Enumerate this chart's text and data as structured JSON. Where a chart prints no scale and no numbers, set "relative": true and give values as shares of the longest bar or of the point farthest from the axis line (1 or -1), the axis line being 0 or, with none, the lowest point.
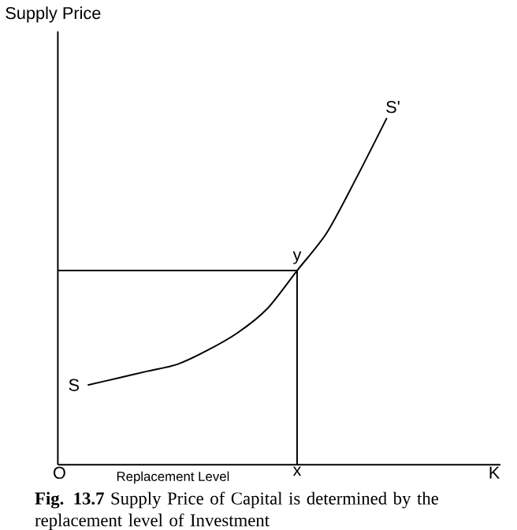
{
  "chart_data": {
    "type": "line",
    "xlabel": "Replacement Level",
    "categories": [
      null,
      null,
      null,
      null,
      null,
      null,
      null,
      null,
      null,
      null,
      null,
      null,
      null,
      null,
      null
    ],
    "relative": true,
    "series": [
      {
        "color": "#000000",
        "values": [
          null,
          0.23,
          0.25,
          0.27,
          0.29,
          0.33,
          0.38,
          0.45,
          0.56,
          0.67,
          0.83,
          1.0,
          null,
          null,
          null
        ]
      }
    ],
    "ref_lines": [
      {
        "axis": "y",
        "value": 0.56,
        "label": "y"
      }
    ],
    "annotations": [
      "O",
      "K",
      "S",
      "S'",
      "x",
      "Supply Price",
      "**Fig. 13.7** Supply Price of Capital is determined by the replacement level of Investment"
    ]
  }
}
